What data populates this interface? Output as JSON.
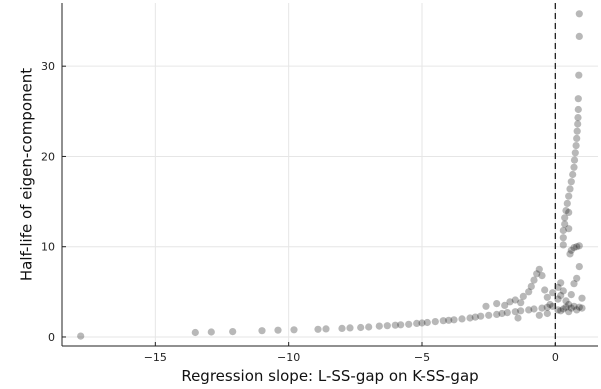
{
  "chart_data": {
    "type": "scatter",
    "title": "",
    "xlabel": "Regression slope: L-SS-gap on K-SS-gap",
    "ylabel": "Half-life of eigen-component",
    "xlim": [
      -18.5,
      1.6
    ],
    "ylim": [
      -1,
      37
    ],
    "x_ticks": [
      -15,
      -10,
      -5,
      0
    ],
    "x_tick_labels": [
      "−15",
      "−10",
      "−5",
      "0"
    ],
    "y_ticks": [
      0,
      10,
      20,
      30
    ],
    "y_tick_labels": [
      "0",
      "10",
      "20",
      "30"
    ],
    "grid": true,
    "legend": "none",
    "vline": {
      "x": 0,
      "style": "dashed"
    },
    "marker": {
      "color": "#000000",
      "opacity": 0.28
    },
    "series": [
      {
        "points": [
          [
            -17.8,
            0.1
          ],
          [
            -13.5,
            0.5
          ],
          [
            -12.9,
            0.55
          ],
          [
            -12.1,
            0.6
          ],
          [
            -11.0,
            0.7
          ],
          [
            -10.4,
            0.75
          ],
          [
            -9.8,
            0.8
          ],
          [
            -8.9,
            0.85
          ],
          [
            -8.6,
            0.9
          ],
          [
            -8.0,
            0.95
          ],
          [
            -7.7,
            1.0
          ],
          [
            -7.3,
            1.05
          ],
          [
            -7.0,
            1.1
          ],
          [
            -6.6,
            1.2
          ],
          [
            -6.3,
            1.25
          ],
          [
            -6.0,
            1.3
          ],
          [
            -5.8,
            1.35
          ],
          [
            -5.5,
            1.4
          ],
          [
            -5.2,
            1.5
          ],
          [
            -5.0,
            1.55
          ],
          [
            -4.8,
            1.6
          ],
          [
            -4.5,
            1.7
          ],
          [
            -4.2,
            1.8
          ],
          [
            -4.0,
            1.85
          ],
          [
            -3.8,
            1.9
          ],
          [
            -3.5,
            2.0
          ],
          [
            -3.2,
            2.1
          ],
          [
            -3.0,
            2.2
          ],
          [
            -2.8,
            2.3
          ],
          [
            -2.5,
            2.4
          ],
          [
            -2.2,
            2.5
          ],
          [
            -2.0,
            2.6
          ],
          [
            -1.8,
            2.7
          ],
          [
            -1.5,
            2.8
          ],
          [
            -1.3,
            2.9
          ],
          [
            -1.0,
            3.0
          ],
          [
            -0.8,
            3.1
          ],
          [
            -0.5,
            3.2
          ],
          [
            -0.3,
            3.3
          ],
          [
            -0.1,
            3.4
          ],
          [
            -2.6,
            3.4
          ],
          [
            -2.2,
            3.7
          ],
          [
            -1.9,
            3.5
          ],
          [
            -1.7,
            3.9
          ],
          [
            -1.5,
            4.1
          ],
          [
            -1.3,
            3.8
          ],
          [
            -1.2,
            4.5
          ],
          [
            -1.0,
            5.0
          ],
          [
            -0.9,
            5.6
          ],
          [
            -0.8,
            6.3
          ],
          [
            -0.7,
            7.0
          ],
          [
            -0.6,
            7.5
          ],
          [
            -0.5,
            6.8
          ],
          [
            -0.4,
            5.2
          ],
          [
            -0.3,
            4.4
          ],
          [
            -0.2,
            3.6
          ],
          [
            -0.1,
            4.9
          ],
          [
            -0.6,
            2.4
          ],
          [
            -0.3,
            2.6
          ],
          [
            -1.4,
            2.1
          ],
          [
            0.1,
            3.0
          ],
          [
            0.1,
            4.2
          ],
          [
            0.1,
            5.5
          ],
          [
            0.2,
            2.9
          ],
          [
            0.2,
            4.6
          ],
          [
            0.2,
            6.0
          ],
          [
            0.3,
            3.1
          ],
          [
            0.3,
            5.1
          ],
          [
            0.4,
            3.3
          ],
          [
            0.4,
            4.0
          ],
          [
            0.5,
            2.8
          ],
          [
            0.5,
            3.6
          ],
          [
            0.6,
            3.2
          ],
          [
            0.6,
            4.7
          ],
          [
            0.7,
            3.4
          ],
          [
            0.7,
            5.9
          ],
          [
            0.8,
            3.0
          ],
          [
            0.8,
            6.5
          ],
          [
            0.9,
            3.3
          ],
          [
            0.9,
            7.8
          ],
          [
            1.0,
            3.2
          ],
          [
            1.0,
            4.3
          ],
          [
            0.3,
            10.2
          ],
          [
            0.3,
            11.0
          ],
          [
            0.3,
            11.8
          ],
          [
            0.35,
            12.5
          ],
          [
            0.35,
            13.2
          ],
          [
            0.4,
            14.0
          ],
          [
            0.45,
            14.8
          ],
          [
            0.5,
            15.6
          ],
          [
            0.55,
            16.4
          ],
          [
            0.6,
            17.2
          ],
          [
            0.65,
            18.0
          ],
          [
            0.7,
            18.8
          ],
          [
            0.72,
            19.6
          ],
          [
            0.75,
            20.4
          ],
          [
            0.78,
            21.2
          ],
          [
            0.8,
            22.0
          ],
          [
            0.82,
            22.8
          ],
          [
            0.84,
            23.6
          ],
          [
            0.85,
            24.3
          ],
          [
            0.86,
            25.2
          ],
          [
            0.86,
            26.4
          ],
          [
            0.55,
            9.2
          ],
          [
            0.6,
            9.6
          ],
          [
            0.7,
            9.9
          ],
          [
            0.8,
            10.0
          ],
          [
            0.9,
            10.1
          ],
          [
            0.88,
            29.0
          ],
          [
            0.9,
            33.3
          ],
          [
            0.9,
            35.8
          ],
          [
            0.5,
            12.0
          ],
          [
            0.5,
            13.8
          ]
        ]
      }
    ]
  }
}
